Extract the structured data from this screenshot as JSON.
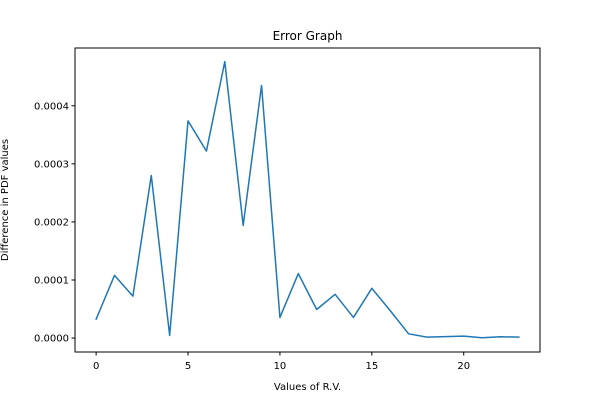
{
  "chart_data": {
    "type": "line",
    "title": "Error Graph",
    "xlabel": "Values of R.V.",
    "ylabel": "Difference in PDF values",
    "xlim": [
      -1.15,
      24.15
    ],
    "ylim": [
      -2.4e-05,
      0.0004995
    ],
    "xticks": [
      0,
      5,
      10,
      15,
      20
    ],
    "xtick_labels": [
      "0",
      "5",
      "10",
      "15",
      "20"
    ],
    "yticks": [
      0,
      0.0001,
      0.0002,
      0.0003,
      0.0004
    ],
    "ytick_labels": [
      "0.0000",
      "0.0001",
      "0.0002",
      "0.0003",
      "0.0004"
    ],
    "grid": false,
    "series": [
      {
        "color": "#1f77b4",
        "x": [
          0,
          1,
          2,
          3,
          4,
          5,
          6,
          7,
          8,
          9,
          10,
          11,
          12,
          13,
          14,
          15,
          16,
          17,
          18,
          19,
          20,
          21,
          22,
          23
        ],
        "y": [
          3.25e-05,
          0.000108,
          7.22e-05,
          0.00028,
          4.5e-06,
          0.000374,
          0.000322,
          0.000476,
          0.000194,
          0.000435,
          3.55e-05,
          0.000111,
          4.92e-05,
          7.53e-05,
          3.55e-05,
          8.57e-05,
          4.73e-05,
          7.3e-06,
          1.7e-06,
          2.5e-06,
          3.3e-06,
          6e-07,
          2.2e-06,
          1.6e-06
        ]
      }
    ]
  }
}
